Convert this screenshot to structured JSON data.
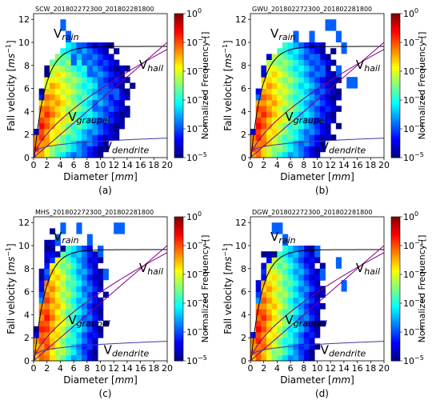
{
  "figure": {
    "colorbar_label": "Normalized Frequency []",
    "colorbar_ticks": [
      "10^0",
      "10^-1",
      "10^-2",
      "10^-3",
      "10^-4",
      "10^-5"
    ],
    "colormap": "jet",
    "curve_colors": {
      "rain": "#000000",
      "hail": "#800080",
      "graupel": "#800080",
      "dendrite": "#3a3aa0"
    }
  },
  "chart_data": [
    {
      "type": "heatmap",
      "title": "SCW_201802272300_201802281800",
      "caption": "(a)",
      "xlabel": "Diameter [mm]",
      "ylabel": "Fall velocity [ms^-1]",
      "xlim": [
        0,
        20
      ],
      "ylim": [
        0,
        12.5
      ],
      "xticks": [
        0,
        2,
        4,
        6,
        8,
        10,
        12,
        14,
        16,
        18,
        20
      ],
      "yticks": [
        0,
        2,
        4,
        6,
        8,
        10,
        12
      ],
      "clim_log10": [
        -5,
        0
      ],
      "curves": [
        "V_rain",
        "V_hail",
        "V_graupel",
        "V_dendrite"
      ],
      "density": {
        "spread": 0.8,
        "peak_d": 1.0,
        "intensity": 0.9
      },
      "extra_cells": [
        [
          5,
          11
        ],
        [
          8,
          9
        ],
        [
          9,
          8
        ],
        [
          10,
          7
        ],
        [
          13,
          5
        ],
        [
          15,
          5
        ],
        [
          12,
          6
        ],
        [
          6,
          10
        ],
        [
          7,
          8
        ],
        [
          11,
          4
        ]
      ]
    },
    {
      "type": "heatmap",
      "title": "GWU_201802272300_201802281800",
      "caption": "(b)",
      "xlabel": "Diameter [mm]",
      "ylabel": "Fall velocity [ms^-1]",
      "xlim": [
        0,
        20
      ],
      "ylim": [
        0,
        12.5
      ],
      "xticks": [
        0,
        2,
        4,
        6,
        8,
        10,
        12,
        14,
        16,
        18,
        20
      ],
      "yticks": [
        0,
        2,
        4,
        6,
        8,
        10,
        12
      ],
      "clim_log10": [
        -5,
        0
      ],
      "curves": [
        "V_rain",
        "V_hail",
        "V_graupel",
        "V_dendrite"
      ],
      "density": {
        "spread": 1.0,
        "peak_d": 1.2,
        "intensity": 1.0
      },
      "extra_cells": [
        [
          14,
          11
        ],
        [
          15,
          11
        ],
        [
          16,
          10
        ],
        [
          17,
          9
        ],
        [
          12,
          8
        ],
        [
          13,
          7
        ],
        [
          18,
          6
        ],
        [
          19,
          6
        ],
        [
          11,
          10
        ],
        [
          8,
          10
        ],
        [
          16,
          7
        ]
      ]
    },
    {
      "type": "heatmap",
      "title": "MHS_201802272300_201802281800",
      "caption": "(c)",
      "xlabel": "Diameter [mm]",
      "ylabel": "Fall velocity [ms^-1]",
      "xlim": [
        0,
        20
      ],
      "ylim": [
        0,
        12.5
      ],
      "xticks": [
        0,
        2,
        4,
        6,
        8,
        10,
        12,
        14,
        16,
        18,
        20
      ],
      "yticks": [
        0,
        2,
        4,
        6,
        8,
        10,
        12
      ],
      "clim_log10": [
        -5,
        0
      ],
      "curves": [
        "V_rain",
        "V_hail",
        "V_graupel",
        "V_dendrite"
      ],
      "density": {
        "spread": 1.6,
        "peak_d": 1.6,
        "intensity": 1.35
      },
      "extra_cells": [
        [
          4,
          10
        ],
        [
          5,
          11
        ],
        [
          8,
          11
        ],
        [
          10,
          10
        ],
        [
          12,
          9
        ],
        [
          15,
          11
        ],
        [
          16,
          11
        ],
        [
          9,
          8
        ],
        [
          13,
          7
        ]
      ]
    },
    {
      "type": "heatmap",
      "title": "DGW_201802272300_201802281800",
      "caption": "(d)",
      "xlabel": "Diameter [mm]",
      "ylabel": "Fall velocity [ms^-1]",
      "xlim": [
        0,
        20
      ],
      "ylim": [
        0,
        12.5
      ],
      "xticks": [
        0,
        2,
        4,
        6,
        8,
        10,
        12,
        14,
        16,
        18,
        20
      ],
      "yticks": [
        0,
        2,
        4,
        6,
        8,
        10,
        12
      ],
      "clim_log10": [
        -5,
        0
      ],
      "curves": [
        "V_rain",
        "V_hail",
        "V_graupel",
        "V_dendrite"
      ],
      "density": {
        "spread": 1.35,
        "peak_d": 1.3,
        "intensity": 1.25
      },
      "extra_cells": [
        [
          4,
          11
        ],
        [
          5,
          11
        ],
        [
          9,
          9
        ],
        [
          12,
          9
        ],
        [
          16,
          8
        ],
        [
          17,
          6
        ],
        [
          6,
          10
        ],
        [
          13,
          7
        ]
      ]
    }
  ]
}
